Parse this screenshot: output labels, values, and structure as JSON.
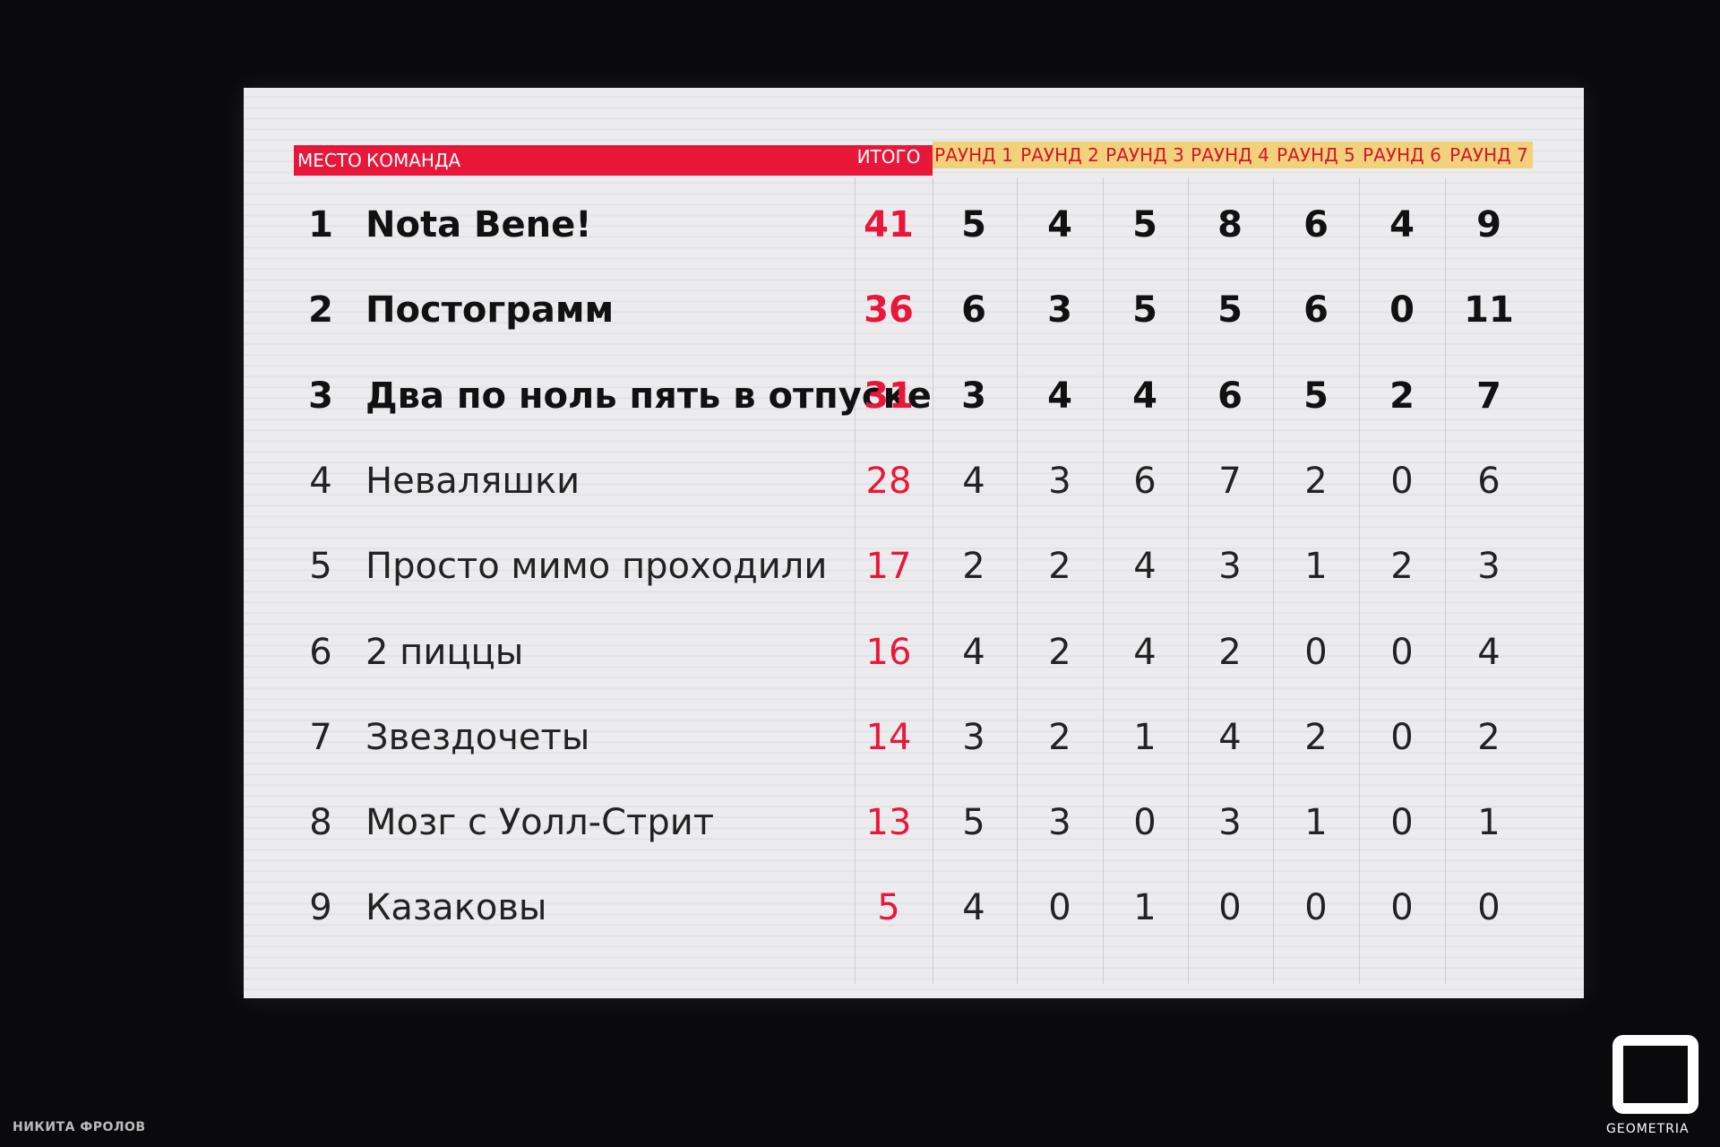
{
  "table": {
    "header": [
      "МЕСТО",
      "КОМАНДА",
      "ИТОГО",
      "РАУНД 1",
      "РАУНД 2",
      "РАУНД 3",
      "РАУНД 4",
      "РАУНД 5",
      "РАУНД 6",
      "РАУНД 7"
    ],
    "rows": [
      [
        1,
        "Nota Bene!",
        41,
        5,
        4,
        5,
        8,
        6,
        4,
        9
      ],
      [
        2,
        "Постограмм",
        36,
        6,
        3,
        5,
        5,
        6,
        0,
        11
      ],
      [
        3,
        "Два по ноль пять в отпуске",
        31,
        3,
        4,
        4,
        6,
        5,
        2,
        7
      ],
      [
        4,
        "Неваляшки",
        28,
        4,
        3,
        6,
        7,
        2,
        0,
        6
      ],
      [
        5,
        "Просто мимо проходили",
        17,
        2,
        2,
        4,
        3,
        1,
        2,
        3
      ],
      [
        6,
        "2 пиццы",
        16,
        4,
        2,
        4,
        2,
        0,
        0,
        4
      ],
      [
        7,
        "Звездочеты",
        14,
        3,
        2,
        1,
        4,
        2,
        0,
        2
      ],
      [
        8,
        "Мозг с Уолл-Стрит",
        13,
        5,
        3,
        0,
        3,
        1,
        0,
        1
      ],
      [
        9,
        "Казаковы",
        5,
        4,
        0,
        1,
        0,
        0,
        0,
        0
      ]
    ]
  },
  "credit": "НИКИТА ФРОЛОВ",
  "logo": "GEOMETRIA"
}
